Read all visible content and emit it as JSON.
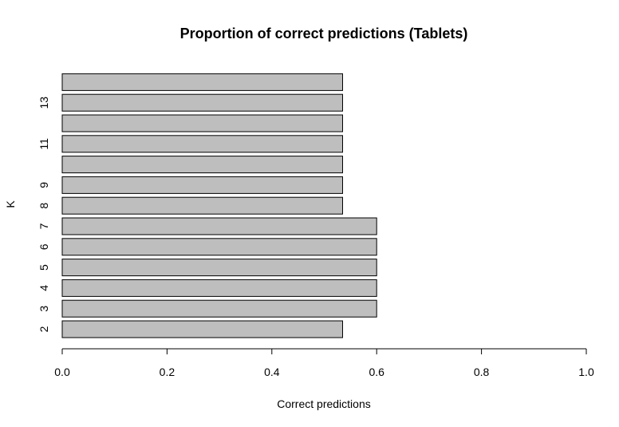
{
  "chart_data": {
    "type": "bar",
    "orientation": "horizontal",
    "title": "Proportion of correct predictions (Tablets)",
    "xlabel": "Correct predictions",
    "ylabel": "K",
    "xlim": [
      0,
      1
    ],
    "x_ticks": [
      "0.0",
      "0.2",
      "0.4",
      "0.6",
      "0.8",
      "1.0"
    ],
    "categories": [
      "2",
      "3",
      "4",
      "5",
      "6",
      "7",
      "8",
      "9",
      "10",
      "11",
      "12",
      "13",
      "14"
    ],
    "category_labels_shown": [
      "2",
      "3",
      "4",
      "5",
      "6",
      "7",
      "8",
      "9",
      "",
      "11",
      "",
      "13",
      ""
    ],
    "values": [
      0.535,
      0.6,
      0.6,
      0.6,
      0.6,
      0.6,
      0.535,
      0.535,
      0.535,
      0.535,
      0.535,
      0.535,
      0.535
    ],
    "bar_color": "#bebebe",
    "grid": false,
    "legend": "none"
  }
}
